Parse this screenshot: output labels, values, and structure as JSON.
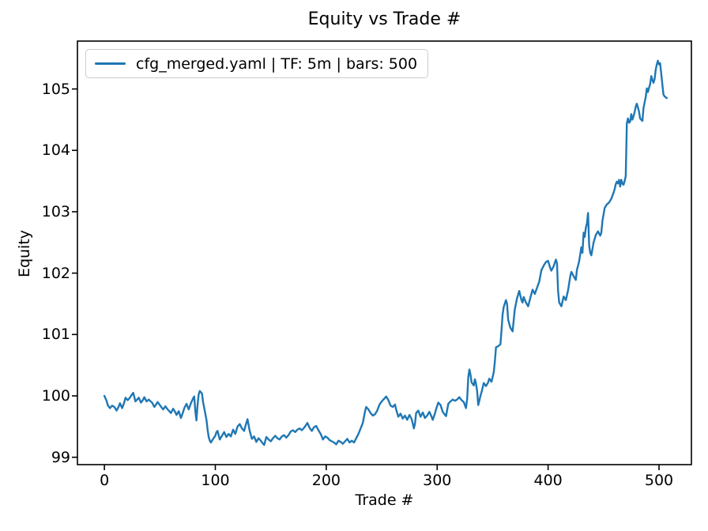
{
  "figure": {
    "background": "#ffffff",
    "text_color": "#000000"
  },
  "chart_data": {
    "type": "line",
    "title": "Equity vs Trade #",
    "xlabel": "Trade #",
    "ylabel": "Equity",
    "grid": false,
    "xlim": [
      -24.3,
      529.2
    ],
    "ylim": [
      98.88,
      105.78
    ],
    "x_ticks": [
      0,
      100,
      200,
      300,
      400,
      500
    ],
    "y_ticks": [
      99,
      100,
      101,
      102,
      103,
      104,
      105
    ],
    "legend": {
      "position": "upper left",
      "entries": [
        {
          "label": "cfg_merged.yaml | TF: 5m | bars: 500",
          "color": "#1f77b4"
        }
      ]
    },
    "series": [
      {
        "name": "cfg_merged.yaml | TF: 5m | bars: 500",
        "color": "#1f77b4",
        "points": [
          [
            0,
            100
          ],
          [
            2,
            99.92
          ],
          [
            3,
            99.85
          ],
          [
            5,
            99.8
          ],
          [
            7,
            99.84
          ],
          [
            9,
            99.82
          ],
          [
            11,
            99.76
          ],
          [
            13,
            99.83
          ],
          [
            14,
            99.88
          ],
          [
            16,
            99.8
          ],
          [
            18,
            99.9
          ],
          [
            19,
            99.97
          ],
          [
            21,
            99.93
          ],
          [
            23,
            99.97
          ],
          [
            24,
            100
          ],
          [
            26,
            100.05
          ],
          [
            28,
            99.91
          ],
          [
            30,
            99.95
          ],
          [
            31,
            99.97
          ],
          [
            33,
            99.89
          ],
          [
            35,
            99.94
          ],
          [
            36,
            99.98
          ],
          [
            38,
            99.91
          ],
          [
            40,
            99.94
          ],
          [
            41,
            99.92
          ],
          [
            43,
            99.89
          ],
          [
            45,
            99.82
          ],
          [
            47,
            99.87
          ],
          [
            48,
            99.9
          ],
          [
            50,
            99.85
          ],
          [
            52,
            99.8
          ],
          [
            53,
            99.78
          ],
          [
            55,
            99.83
          ],
          [
            57,
            99.78
          ],
          [
            58,
            99.76
          ],
          [
            60,
            99.72
          ],
          [
            62,
            99.79
          ],
          [
            64,
            99.73
          ],
          [
            65,
            99.69
          ],
          [
            67,
            99.75
          ],
          [
            69,
            99.64
          ],
          [
            71,
            99.74
          ],
          [
            72,
            99.8
          ],
          [
            74,
            99.87
          ],
          [
            76,
            99.78
          ],
          [
            78,
            99.88
          ],
          [
            80,
            99.96
          ],
          [
            81,
            99.99
          ],
          [
            82,
            99.75
          ],
          [
            83,
            99.6
          ],
          [
            84,
            99.85
          ],
          [
            85,
            100.02
          ],
          [
            86,
            100.08
          ],
          [
            88,
            100.04
          ],
          [
            89,
            99.9
          ],
          [
            90,
            99.8
          ],
          [
            92,
            99.61
          ],
          [
            93,
            99.45
          ],
          [
            94,
            99.33
          ],
          [
            95,
            99.27
          ],
          [
            96,
            99.24
          ],
          [
            98,
            99.3
          ],
          [
            100,
            99.35
          ],
          [
            101,
            99.41
          ],
          [
            102,
            99.43
          ],
          [
            104,
            99.29
          ],
          [
            106,
            99.35
          ],
          [
            108,
            99.41
          ],
          [
            110,
            99.33
          ],
          [
            112,
            99.38
          ],
          [
            114,
            99.34
          ],
          [
            116,
            99.45
          ],
          [
            118,
            99.38
          ],
          [
            120,
            99.5
          ],
          [
            122,
            99.54
          ],
          [
            124,
            99.47
          ],
          [
            126,
            99.43
          ],
          [
            127,
            99.5
          ],
          [
            129,
            99.62
          ],
          [
            131,
            99.43
          ],
          [
            133,
            99.3
          ],
          [
            135,
            99.34
          ],
          [
            137,
            99.25
          ],
          [
            139,
            99.31
          ],
          [
            141,
            99.27
          ],
          [
            143,
            99.22
          ],
          [
            144,
            99.2
          ],
          [
            146,
            99.33
          ],
          [
            148,
            99.29
          ],
          [
            150,
            99.26
          ],
          [
            152,
            99.31
          ],
          [
            154,
            99.35
          ],
          [
            156,
            99.31
          ],
          [
            158,
            99.29
          ],
          [
            160,
            99.34
          ],
          [
            162,
            99.36
          ],
          [
            164,
            99.32
          ],
          [
            166,
            99.36
          ],
          [
            168,
            99.42
          ],
          [
            170,
            99.44
          ],
          [
            172,
            99.41
          ],
          [
            174,
            99.45
          ],
          [
            176,
            99.47
          ],
          [
            178,
            99.44
          ],
          [
            180,
            99.48
          ],
          [
            182,
            99.53
          ],
          [
            183,
            99.56
          ],
          [
            185,
            99.48
          ],
          [
            187,
            99.43
          ],
          [
            189,
            99.49
          ],
          [
            191,
            99.51
          ],
          [
            193,
            99.44
          ],
          [
            195,
            99.38
          ],
          [
            197,
            99.29
          ],
          [
            199,
            99.34
          ],
          [
            201,
            99.32
          ],
          [
            203,
            99.28
          ],
          [
            205,
            99.26
          ],
          [
            207,
            99.24
          ],
          [
            209,
            99.21
          ],
          [
            211,
            99.27
          ],
          [
            213,
            99.25
          ],
          [
            215,
            99.22
          ],
          [
            217,
            99.26
          ],
          [
            219,
            99.3
          ],
          [
            221,
            99.24
          ],
          [
            223,
            99.27
          ],
          [
            225,
            99.24
          ],
          [
            227,
            99.31
          ],
          [
            229,
            99.38
          ],
          [
            231,
            99.47
          ],
          [
            233,
            99.56
          ],
          [
            235,
            99.75
          ],
          [
            236,
            99.82
          ],
          [
            238,
            99.78
          ],
          [
            240,
            99.72
          ],
          [
            242,
            99.68
          ],
          [
            244,
            99.7
          ],
          [
            246,
            99.76
          ],
          [
            248,
            99.86
          ],
          [
            250,
            99.91
          ],
          [
            252,
            99.95
          ],
          [
            254,
            99.99
          ],
          [
            256,
            99.93
          ],
          [
            258,
            99.84
          ],
          [
            260,
            99.82
          ],
          [
            262,
            99.86
          ],
          [
            263,
            99.78
          ],
          [
            265,
            99.66
          ],
          [
            267,
            99.71
          ],
          [
            269,
            99.63
          ],
          [
            271,
            99.68
          ],
          [
            273,
            99.61
          ],
          [
            275,
            99.69
          ],
          [
            277,
            99.62
          ],
          [
            279,
            99.47
          ],
          [
            280,
            99.55
          ],
          [
            281,
            99.72
          ],
          [
            283,
            99.76
          ],
          [
            285,
            99.66
          ],
          [
            287,
            99.73
          ],
          [
            289,
            99.64
          ],
          [
            291,
            99.68
          ],
          [
            293,
            99.74
          ],
          [
            295,
            99.66
          ],
          [
            296,
            99.61
          ],
          [
            298,
            99.71
          ],
          [
            299,
            99.78
          ],
          [
            301,
            99.89
          ],
          [
            303,
            99.85
          ],
          [
            305,
            99.74
          ],
          [
            307,
            99.69
          ],
          [
            308,
            99.67
          ],
          [
            310,
            99.87
          ],
          [
            312,
            99.91
          ],
          [
            314,
            99.94
          ],
          [
            316,
            99.92
          ],
          [
            318,
            99.94
          ],
          [
            320,
            99.98
          ],
          [
            322,
            99.93
          ],
          [
            324,
            99.9
          ],
          [
            326,
            99.8
          ],
          [
            327,
            99.95
          ],
          [
            328,
            100.3
          ],
          [
            329,
            100.43
          ],
          [
            330,
            100.35
          ],
          [
            331,
            100.22
          ],
          [
            333,
            100.17
          ],
          [
            334,
            100.27
          ],
          [
            335,
            100.2
          ],
          [
            336,
            100.08
          ],
          [
            337,
            99.85
          ],
          [
            338,
            99.92
          ],
          [
            339,
            100
          ],
          [
            340,
            100.06
          ],
          [
            342,
            100.21
          ],
          [
            344,
            100.16
          ],
          [
            346,
            100.22
          ],
          [
            347,
            100.28
          ],
          [
            349,
            100.23
          ],
          [
            351,
            100.38
          ],
          [
            352,
            100.55
          ],
          [
            353,
            100.79
          ],
          [
            355,
            100.81
          ],
          [
            357,
            100.84
          ],
          [
            358,
            101.07
          ],
          [
            359,
            101.33
          ],
          [
            360,
            101.45
          ],
          [
            362,
            101.56
          ],
          [
            363,
            101.5
          ],
          [
            364,
            101.24
          ],
          [
            366,
            101.11
          ],
          [
            368,
            101.05
          ],
          [
            370,
            101.41
          ],
          [
            372,
            101.59
          ],
          [
            374,
            101.71
          ],
          [
            376,
            101.56
          ],
          [
            377,
            101.52
          ],
          [
            378,
            101.61
          ],
          [
            380,
            101.52
          ],
          [
            382,
            101.46
          ],
          [
            384,
            101.6
          ],
          [
            386,
            101.73
          ],
          [
            388,
            101.66
          ],
          [
            390,
            101.76
          ],
          [
            392,
            101.86
          ],
          [
            394,
            102.05
          ],
          [
            396,
            102.12
          ],
          [
            398,
            102.18
          ],
          [
            400,
            102.2
          ],
          [
            401,
            102.14
          ],
          [
            402,
            102.08
          ],
          [
            403,
            102.04
          ],
          [
            405,
            102.11
          ],
          [
            407,
            102.22
          ],
          [
            408,
            102.16
          ],
          [
            409,
            101.7
          ],
          [
            410,
            101.52
          ],
          [
            412,
            101.46
          ],
          [
            414,
            101.62
          ],
          [
            416,
            101.56
          ],
          [
            418,
            101.72
          ],
          [
            420,
            101.95
          ],
          [
            421,
            102.02
          ],
          [
            423,
            101.95
          ],
          [
            425,
            101.89
          ],
          [
            426,
            102.05
          ],
          [
            428,
            102.19
          ],
          [
            430,
            102.42
          ],
          [
            431,
            102.33
          ],
          [
            432,
            102.66
          ],
          [
            433,
            102.59
          ],
          [
            434,
            102.74
          ],
          [
            435,
            102.81
          ],
          [
            436,
            102.98
          ],
          [
            437,
            102.45
          ],
          [
            438,
            102.33
          ],
          [
            439,
            102.29
          ],
          [
            441,
            102.5
          ],
          [
            443,
            102.62
          ],
          [
            445,
            102.68
          ],
          [
            447,
            102.61
          ],
          [
            448,
            102.66
          ],
          [
            449,
            102.85
          ],
          [
            451,
            103.06
          ],
          [
            453,
            103.12
          ],
          [
            455,
            103.15
          ],
          [
            457,
            103.21
          ],
          [
            459,
            103.31
          ],
          [
            460,
            103.37
          ],
          [
            461,
            103.45
          ],
          [
            462,
            103.49
          ],
          [
            463,
            103.46
          ],
          [
            464,
            103.52
          ],
          [
            465,
            103.41
          ],
          [
            466,
            103.52
          ],
          [
            467,
            103.46
          ],
          [
            468,
            103.44
          ],
          [
            469,
            103.5
          ],
          [
            470,
            103.58
          ],
          [
            471,
            104.44
          ],
          [
            472,
            104.52
          ],
          [
            473,
            104.45
          ],
          [
            474,
            104.47
          ],
          [
            475,
            104.59
          ],
          [
            476,
            104.5
          ],
          [
            477,
            104.55
          ],
          [
            478,
            104.62
          ],
          [
            479,
            104.71
          ],
          [
            480,
            104.76
          ],
          [
            481,
            104.7
          ],
          [
            482,
            104.63
          ],
          [
            483,
            104.52
          ],
          [
            484,
            104.5
          ],
          [
            485,
            104.48
          ],
          [
            486,
            104.69
          ],
          [
            487,
            104.78
          ],
          [
            488,
            104.87
          ],
          [
            489,
            105.01
          ],
          [
            490,
            104.95
          ],
          [
            491,
            105.02
          ],
          [
            492,
            105.08
          ],
          [
            493,
            105.21
          ],
          [
            494,
            105.15
          ],
          [
            495,
            105.1
          ],
          [
            496,
            105.16
          ],
          [
            497,
            105.31
          ],
          [
            498,
            105.4
          ],
          [
            499,
            105.46
          ],
          [
            500,
            105.4
          ],
          [
            501,
            105.42
          ],
          [
            502,
            105.25
          ],
          [
            503,
            105.08
          ],
          [
            504,
            104.91
          ],
          [
            505,
            104.88
          ],
          [
            507,
            104.85
          ]
        ]
      }
    ]
  }
}
